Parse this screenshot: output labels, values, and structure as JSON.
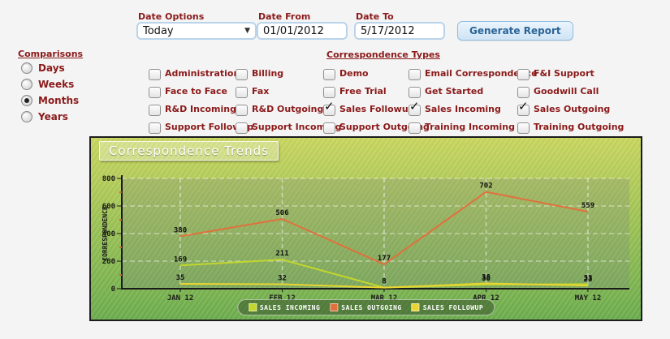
{
  "icons": {
    "dropdown_arrow": "▼",
    "check_glyph": "✓"
  },
  "colors": {
    "label_red": "#8b1a1a",
    "input_border": "#b9d3ea",
    "button_text": "#2a6496",
    "chart_border": "#1c1c1c"
  },
  "toolbar": {
    "date_options_label": "Date Options",
    "date_options_value": "Today",
    "date_from_label": "Date From",
    "date_from_value": "01/01/2012",
    "date_to_label": "Date To",
    "date_to_value": "5/17/2012",
    "generate_button": "Generate Report"
  },
  "comparisons": {
    "title": "Comparisons",
    "options": [
      {
        "label": "Days",
        "selected": false
      },
      {
        "label": "Weeks",
        "selected": false
      },
      {
        "label": "Months",
        "selected": true
      },
      {
        "label": "Years",
        "selected": false
      }
    ]
  },
  "correspondence_types": {
    "title": "Correspondence Types",
    "items": [
      {
        "label": "Administration",
        "checked": false
      },
      {
        "label": "Billing",
        "checked": false
      },
      {
        "label": "Demo",
        "checked": false
      },
      {
        "label": "Email Correspondence",
        "checked": false
      },
      {
        "label": "F&I Support",
        "checked": false
      },
      {
        "label": "Face to Face",
        "checked": false
      },
      {
        "label": "Fax",
        "checked": false
      },
      {
        "label": "Free Trial",
        "checked": false
      },
      {
        "label": "Get Started",
        "checked": false
      },
      {
        "label": "Goodwill Call",
        "checked": false
      },
      {
        "label": "R&D Incoming",
        "checked": false
      },
      {
        "label": "R&D Outgoing",
        "checked": false
      },
      {
        "label": "Sales Followup",
        "checked": true
      },
      {
        "label": "Sales Incoming",
        "checked": true
      },
      {
        "label": "Sales Outgoing",
        "checked": true
      },
      {
        "label": "Support Followup",
        "checked": false
      },
      {
        "label": "Support Incoming",
        "checked": false
      },
      {
        "label": "Support Outgoing",
        "checked": false
      },
      {
        "label": "Training Incoming",
        "checked": false
      },
      {
        "label": "Training Outgoing",
        "checked": false
      }
    ]
  },
  "chart_data": {
    "type": "line",
    "title": "Correspondence Trends",
    "ylabel": "CORRESPONDENCE",
    "ylim": [
      0,
      800
    ],
    "yticks": [
      0,
      200,
      400,
      600,
      800
    ],
    "yticks_minor": [
      100,
      300,
      500,
      700
    ],
    "grid": true,
    "legend_position": "bottom",
    "categories": [
      "JAN 12",
      "FEB 12",
      "MAR 12",
      "APR 12",
      "MAY 12"
    ],
    "series": [
      {
        "name": "SALES INCOMING",
        "color": "#c2d62e",
        "values": [
          169,
          211,
          8,
          30,
          33
        ]
      },
      {
        "name": "SALES OUTGOING",
        "color": "#e0713d",
        "values": [
          380,
          506,
          177,
          702,
          559
        ]
      },
      {
        "name": "SALES FOLLOWUP",
        "color": "#e8d532",
        "values": [
          35,
          32,
          8,
          38,
          23
        ]
      }
    ]
  }
}
